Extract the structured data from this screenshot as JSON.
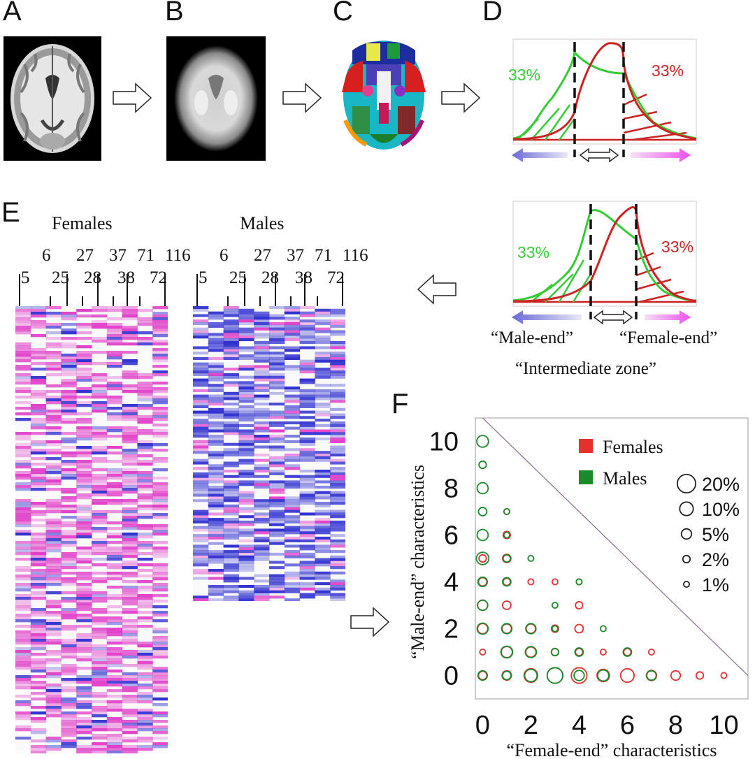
{
  "panels": {
    "a": {
      "letter": "A"
    },
    "b": {
      "letter": "B"
    },
    "c": {
      "letter": "C"
    },
    "d": {
      "letter": "D",
      "left_pct": "33%",
      "right_pct": "33%"
    },
    "d2": {
      "left_pct": "33%",
      "right_pct": "33%",
      "male_end_label": "“Male-end”",
      "female_end_label": "“Female-end”",
      "intermediate_label": "“Intermediate  zone”"
    },
    "e": {
      "letter": "E",
      "females_title": "Females",
      "males_title": "Males",
      "top_ticks": [
        "6",
        "27",
        "37",
        "71",
        "116"
      ],
      "bottom_ticks": [
        "5",
        "25",
        "28",
        "38",
        "72"
      ]
    },
    "f": {
      "letter": "F"
    }
  },
  "colors": {
    "female": "#e53030",
    "male": "#1a8a2a",
    "female_heat": "#e040c8",
    "male_heat": "#3030d0",
    "green_curve": "#33cc33",
    "red_curve": "#cc2222"
  },
  "chart_data": {
    "type": "scatter",
    "title": "",
    "xlabel": "“Female-end”  characteristics",
    "ylabel": "“Male-end”  characteristics",
    "xlim": [
      -0.3,
      11
    ],
    "ylim": [
      -1,
      11
    ],
    "xticks": [
      "0",
      "2",
      "4",
      "6",
      "8",
      "10"
    ],
    "yticks": [
      "0",
      "2",
      "4",
      "6",
      "8",
      "10"
    ],
    "legend": {
      "series": [
        {
          "name": "Females",
          "color": "#e53030"
        },
        {
          "name": "Males",
          "color": "#1a8a2a"
        }
      ],
      "sizes": [
        {
          "label": "20%",
          "value": 20
        },
        {
          "label": "10%",
          "value": 10
        },
        {
          "label": "5%",
          "value": 5
        },
        {
          "label": "2%",
          "value": 2
        },
        {
          "label": "1%",
          "value": 1
        }
      ]
    },
    "diagonal_line": [
      [
        0,
        11
      ],
      [
        11,
        0
      ]
    ],
    "series": [
      {
        "name": "Females",
        "points": [
          [
            0,
            0,
            3
          ],
          [
            1,
            0,
            4
          ],
          [
            2,
            0,
            10
          ],
          [
            3,
            0,
            14
          ],
          [
            4,
            0,
            14
          ],
          [
            5,
            0,
            8
          ],
          [
            6,
            0,
            10
          ],
          [
            7,
            0,
            5
          ],
          [
            8,
            0,
            4
          ],
          [
            9,
            0,
            2
          ],
          [
            10,
            0,
            1
          ],
          [
            0,
            1,
            1
          ],
          [
            1,
            1,
            6
          ],
          [
            2,
            1,
            5
          ],
          [
            3,
            1,
            2
          ],
          [
            4,
            1,
            2
          ],
          [
            5,
            1,
            1
          ],
          [
            6,
            1,
            2
          ],
          [
            7,
            1,
            1
          ],
          [
            0,
            2,
            5
          ],
          [
            1,
            2,
            4
          ],
          [
            2,
            2,
            4
          ],
          [
            3,
            2,
            2
          ],
          [
            4,
            2,
            3
          ],
          [
            0,
            3,
            5
          ],
          [
            1,
            3,
            3
          ],
          [
            4,
            3,
            2
          ],
          [
            0,
            4,
            3
          ],
          [
            1,
            4,
            2
          ],
          [
            2,
            4,
            1
          ],
          [
            3,
            4,
            1
          ],
          [
            4,
            4,
            1
          ],
          [
            0,
            5,
            2
          ],
          [
            1,
            5,
            3
          ],
          [
            1,
            6,
            2
          ],
          [
            1,
            7,
            1
          ]
        ]
      },
      {
        "name": "Males",
        "points": [
          [
            0,
            0,
            4
          ],
          [
            1,
            0,
            3
          ],
          [
            2,
            0,
            8
          ],
          [
            3,
            0,
            14
          ],
          [
            4,
            0,
            5
          ],
          [
            5,
            0,
            6
          ],
          [
            7,
            0,
            4
          ],
          [
            1,
            1,
            7
          ],
          [
            2,
            1,
            6
          ],
          [
            3,
            1,
            2
          ],
          [
            4,
            1,
            3
          ],
          [
            6,
            1,
            3
          ],
          [
            0,
            2,
            6
          ],
          [
            1,
            2,
            5
          ],
          [
            2,
            2,
            5
          ],
          [
            3,
            2,
            1
          ],
          [
            5,
            2,
            1
          ],
          [
            0,
            3,
            5
          ],
          [
            3,
            3,
            1
          ],
          [
            0,
            4,
            4
          ],
          [
            1,
            4,
            3
          ],
          [
            4,
            4,
            1
          ],
          [
            0,
            5,
            8
          ],
          [
            1,
            5,
            2
          ],
          [
            2,
            5,
            1
          ],
          [
            0,
            6,
            6
          ],
          [
            1,
            6,
            1
          ],
          [
            0,
            7,
            3
          ],
          [
            1,
            7,
            1
          ],
          [
            0,
            8,
            6
          ],
          [
            0,
            9,
            2
          ],
          [
            0,
            10,
            7
          ]
        ]
      }
    ]
  }
}
